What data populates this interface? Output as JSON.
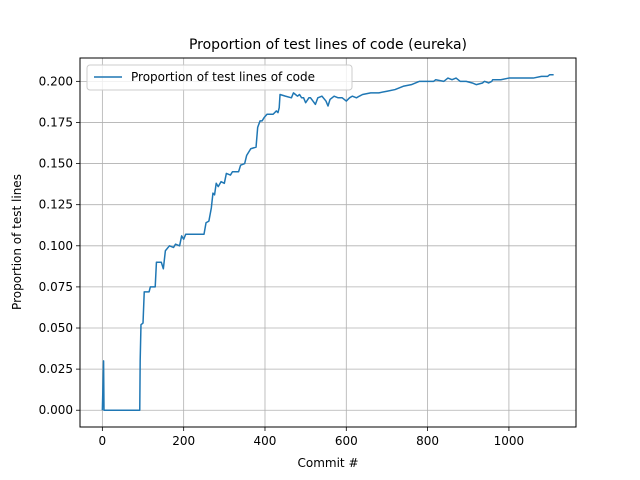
{
  "chart_data": {
    "type": "line",
    "title": "Proportion of test lines of code (eureka)",
    "xlabel": "Commit #",
    "ylabel": "Proportion of test lines",
    "xlim": [
      -55,
      1165
    ],
    "ylim": [
      -0.0102,
      0.2142
    ],
    "x_ticks": [
      0,
      200,
      400,
      600,
      800,
      1000
    ],
    "y_ticks": [
      0.0,
      0.025,
      0.05,
      0.075,
      0.1,
      0.125,
      0.15,
      0.175,
      0.2
    ],
    "x_tick_labels": [
      "0",
      "200",
      "400",
      "600",
      "800",
      "1000"
    ],
    "y_tick_labels": [
      "0.000",
      "0.025",
      "0.050",
      "0.075",
      "0.100",
      "0.125",
      "0.150",
      "0.175",
      "0.200"
    ],
    "grid": true,
    "legend_position": "top-left",
    "series": [
      {
        "name": "Proportion of test lines of code",
        "color": "#1f77b4",
        "points": [
          [
            0,
            0.0
          ],
          [
            3,
            0.03
          ],
          [
            4,
            0.0
          ],
          [
            10,
            0.0
          ],
          [
            50,
            0.0
          ],
          [
            92,
            0.0
          ],
          [
            93,
            0.03
          ],
          [
            95,
            0.052
          ],
          [
            100,
            0.053
          ],
          [
            103,
            0.072
          ],
          [
            115,
            0.072
          ],
          [
            118,
            0.075
          ],
          [
            130,
            0.075
          ],
          [
            133,
            0.09
          ],
          [
            145,
            0.09
          ],
          [
            150,
            0.086
          ],
          [
            155,
            0.097
          ],
          [
            165,
            0.1
          ],
          [
            175,
            0.099
          ],
          [
            180,
            0.101
          ],
          [
            190,
            0.1
          ],
          [
            195,
            0.106
          ],
          [
            200,
            0.104
          ],
          [
            205,
            0.107
          ],
          [
            220,
            0.107
          ],
          [
            250,
            0.107
          ],
          [
            255,
            0.114
          ],
          [
            262,
            0.115
          ],
          [
            268,
            0.123
          ],
          [
            272,
            0.132
          ],
          [
            276,
            0.131
          ],
          [
            280,
            0.138
          ],
          [
            285,
            0.136
          ],
          [
            292,
            0.139
          ],
          [
            300,
            0.138
          ],
          [
            305,
            0.144
          ],
          [
            315,
            0.143
          ],
          [
            320,
            0.145
          ],
          [
            335,
            0.145
          ],
          [
            340,
            0.149
          ],
          [
            350,
            0.15
          ],
          [
            355,
            0.155
          ],
          [
            365,
            0.159
          ],
          [
            378,
            0.16
          ],
          [
            382,
            0.172
          ],
          [
            388,
            0.176
          ],
          [
            393,
            0.176
          ],
          [
            398,
            0.178
          ],
          [
            405,
            0.18
          ],
          [
            420,
            0.18
          ],
          [
            428,
            0.182
          ],
          [
            432,
            0.181
          ],
          [
            435,
            0.184
          ],
          [
            437,
            0.192
          ],
          [
            450,
            0.191
          ],
          [
            465,
            0.19
          ],
          [
            470,
            0.193
          ],
          [
            475,
            0.192
          ],
          [
            480,
            0.191
          ],
          [
            485,
            0.192
          ],
          [
            490,
            0.19
          ],
          [
            495,
            0.19
          ],
          [
            500,
            0.187
          ],
          [
            508,
            0.19
          ],
          [
            512,
            0.19
          ],
          [
            518,
            0.188
          ],
          [
            524,
            0.186
          ],
          [
            530,
            0.19
          ],
          [
            540,
            0.191
          ],
          [
            550,
            0.188
          ],
          [
            555,
            0.185
          ],
          [
            560,
            0.189
          ],
          [
            570,
            0.191
          ],
          [
            580,
            0.19
          ],
          [
            590,
            0.19
          ],
          [
            600,
            0.188
          ],
          [
            608,
            0.19
          ],
          [
            615,
            0.191
          ],
          [
            625,
            0.19
          ],
          [
            632,
            0.191
          ],
          [
            640,
            0.192
          ],
          [
            660,
            0.193
          ],
          [
            680,
            0.193
          ],
          [
            700,
            0.194
          ],
          [
            720,
            0.195
          ],
          [
            740,
            0.197
          ],
          [
            760,
            0.198
          ],
          [
            780,
            0.2
          ],
          [
            800,
            0.2
          ],
          [
            815,
            0.2
          ],
          [
            820,
            0.201
          ],
          [
            840,
            0.2
          ],
          [
            850,
            0.202
          ],
          [
            860,
            0.201
          ],
          [
            870,
            0.202
          ],
          [
            880,
            0.2
          ],
          [
            895,
            0.2
          ],
          [
            910,
            0.199
          ],
          [
            920,
            0.198
          ],
          [
            935,
            0.199
          ],
          [
            940,
            0.2
          ],
          [
            950,
            0.199
          ],
          [
            958,
            0.2
          ],
          [
            960,
            0.201
          ],
          [
            980,
            0.201
          ],
          [
            1000,
            0.202
          ],
          [
            1020,
            0.202
          ],
          [
            1040,
            0.202
          ],
          [
            1060,
            0.202
          ],
          [
            1080,
            0.203
          ],
          [
            1095,
            0.203
          ],
          [
            1100,
            0.204
          ],
          [
            1110,
            0.204
          ]
        ]
      }
    ]
  }
}
